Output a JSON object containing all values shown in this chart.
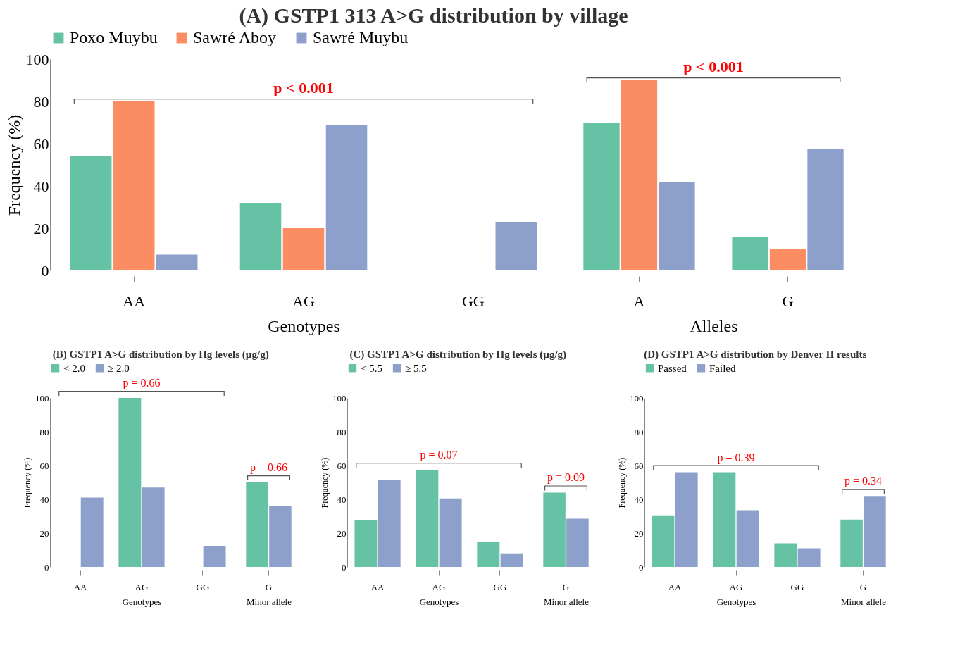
{
  "chart_data": [
    {
      "type": "bar",
      "title": "(A) GSTP1 313 A>G distribution by village",
      "categories": [
        "AA",
        "AG",
        "GG"
      ],
      "xlabel": "Genotypes",
      "ylabel": "Frequency (%)",
      "legend": "top",
      "grid": false,
      "ylim": [
        0,
        100
      ],
      "yticks": [
        0,
        20,
        40,
        60,
        80,
        100
      ],
      "series": [
        {
          "name": "Poxo Muybu",
          "color": "#66c2a5",
          "values": [
            54,
            32,
            0
          ]
        },
        {
          "name": "Sawré Aboy",
          "color": "#fc8d62",
          "values": [
            80,
            20,
            0
          ]
        },
        {
          "name": "Sawré Muybu",
          "color": "#8da0cb",
          "values": [
            7.5,
            69,
            23
          ]
        }
      ],
      "annotations": [
        "p < 0.001"
      ]
    },
    {
      "type": "bar",
      "categories": [
        "A",
        "G"
      ],
      "xlabel": "Alleles",
      "tick_labels": "x",
      "grid": false,
      "ylim": [
        0,
        100
      ],
      "yticks": [
        0,
        20,
        40,
        60,
        80,
        100
      ],
      "series": [
        {
          "color": "#66c2a5",
          "values": [
            70,
            16
          ]
        },
        {
          "color": "#fc8d62",
          "values": [
            90,
            10
          ]
        },
        {
          "color": "#8da0cb",
          "values": [
            42,
            57.5
          ]
        }
      ],
      "annotations": [
        "p < 0.001"
      ]
    },
    {
      "type": "bar",
      "title": "(B) GSTP1 A>G distribution by Hg levels (µg/g)",
      "categories": [
        "AA",
        "AG",
        "GG"
      ],
      "xlabel": "Genotypes",
      "ylabel": "Frequency (%)",
      "legend": "top",
      "grid": false,
      "ylim": [
        0,
        100
      ],
      "yticks": [
        0,
        20,
        40,
        60,
        80,
        100
      ],
      "series": [
        {
          "name": "< 2.0",
          "color": "#66c2a5",
          "values": [
            0,
            100,
            0
          ]
        },
        {
          "name": "≥ 2.0",
          "color": "#8da0cb",
          "values": [
            41,
            47,
            12.5
          ]
        }
      ],
      "annotations": [
        "p = 0.66"
      ]
    },
    {
      "type": "bar",
      "categories": [
        "G"
      ],
      "xlabel": "Minor allele",
      "tick_labels": "x",
      "grid": false,
      "ylim": [
        0,
        100
      ],
      "yticks": [
        0,
        20,
        40,
        60,
        80,
        100
      ],
      "series": [
        {
          "color": "#66c2a5",
          "values": [
            50
          ]
        },
        {
          "color": "#8da0cb",
          "values": [
            36
          ]
        }
      ],
      "annotations": [
        "p = 0.66"
      ]
    },
    {
      "type": "bar",
      "title": "(C) GSTP1 A>G distribution by Hg levels (µg/g)",
      "categories": [
        "AA",
        "AG",
        "GG"
      ],
      "xlabel": "Genotypes",
      "ylabel": "Frequency (%)",
      "legend": "top",
      "grid": false,
      "ylim": [
        0,
        100
      ],
      "yticks": [
        0,
        20,
        40,
        60,
        80,
        100
      ],
      "series": [
        {
          "name": "< 5.5",
          "color": "#66c2a5",
          "values": [
            27.5,
            57.5,
            15
          ]
        },
        {
          "name": "≥ 5.5",
          "color": "#8da0cb",
          "values": [
            51.5,
            40.5,
            8
          ]
        }
      ],
      "annotations": [
        "p = 0.07"
      ]
    },
    {
      "type": "bar",
      "categories": [
        "G"
      ],
      "xlabel": "Minor allele",
      "tick_labels": "x",
      "grid": false,
      "ylim": [
        0,
        100
      ],
      "yticks": [
        0,
        20,
        40,
        60,
        80,
        100
      ],
      "series": [
        {
          "color": "#66c2a5",
          "values": [
            44
          ]
        },
        {
          "color": "#8da0cb",
          "values": [
            28.5
          ]
        }
      ],
      "annotations": [
        "p = 0.09"
      ]
    },
    {
      "type": "bar",
      "title": "(D) GSTP1 A>G distribution by Denver II results",
      "categories": [
        "AA",
        "AG",
        "GG"
      ],
      "xlabel": "Genotypes",
      "ylabel": "Frequency (%)",
      "legend": "top",
      "grid": false,
      "ylim": [
        0,
        100
      ],
      "yticks": [
        0,
        20,
        40,
        60,
        80,
        100
      ],
      "series": [
        {
          "name": "Passed",
          "color": "#66c2a5",
          "values": [
            30.5,
            56,
            14
          ]
        },
        {
          "name": "Failed",
          "color": "#8da0cb",
          "values": [
            56,
            33.5,
            11
          ]
        }
      ],
      "annotations": [
        "p = 0.39"
      ]
    },
    {
      "type": "bar",
      "categories": [
        "G"
      ],
      "xlabel": "Minor allele",
      "tick_labels": "x",
      "grid": false,
      "ylim": [
        0,
        100
      ],
      "yticks": [
        0,
        20,
        40,
        60,
        80,
        100
      ],
      "series": [
        {
          "color": "#66c2a5",
          "values": [
            28
          ]
        },
        {
          "color": "#8da0cb",
          "values": [
            42
          ]
        }
      ],
      "annotations": [
        "p = 0.34"
      ]
    }
  ]
}
